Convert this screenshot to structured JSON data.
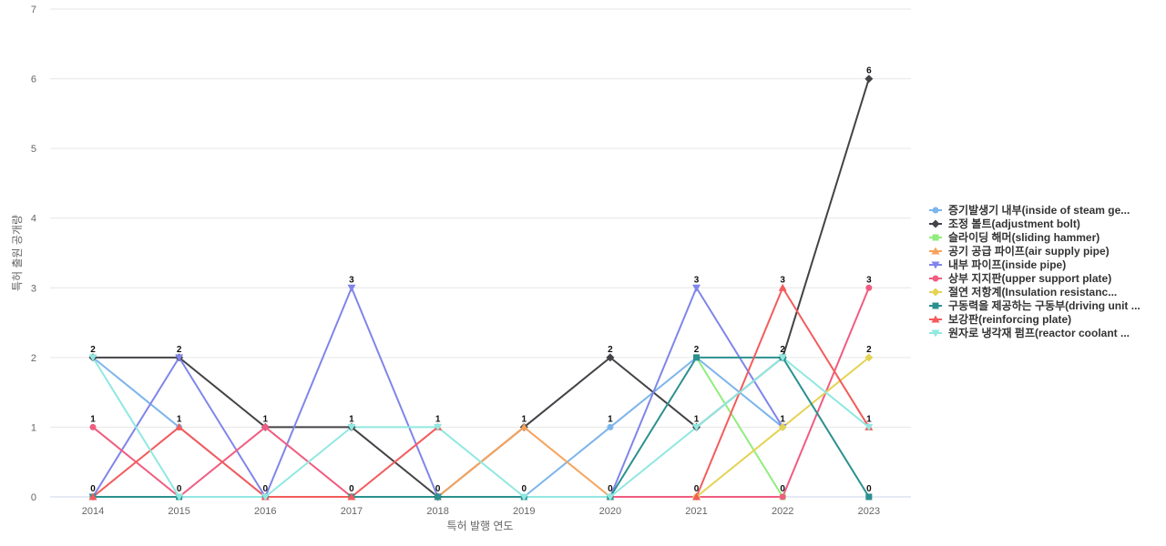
{
  "chart_data": {
    "type": "line",
    "title": "",
    "xlabel": "특허 발행 연도",
    "ylabel": "특허 출원 공개량",
    "x": [
      "2014",
      "2015",
      "2016",
      "2017",
      "2018",
      "2019",
      "2020",
      "2021",
      "2022",
      "2023"
    ],
    "ylim": [
      0,
      7
    ],
    "yticks": [
      "0",
      "1",
      "2",
      "3",
      "4",
      "5",
      "6",
      "7"
    ],
    "grid": true,
    "legend_position": "right",
    "series": [
      {
        "name": "증기발생기 내부(inside of steam ge...",
        "color": "#7cb5ec",
        "marker": "circle",
        "values": [
          2,
          1,
          0,
          0,
          0,
          0,
          1,
          2,
          1,
          null
        ]
      },
      {
        "name": "조정 볼트(adjustment bolt)",
        "color": "#434348",
        "marker": "diamond",
        "values": [
          2,
          2,
          1,
          1,
          0,
          1,
          2,
          1,
          2,
          6
        ]
      },
      {
        "name": "슬라이딩 해머(sliding hammer)",
        "color": "#90ed7d",
        "marker": "square",
        "values": [
          null,
          null,
          null,
          null,
          null,
          null,
          null,
          2,
          0,
          null
        ]
      },
      {
        "name": "공기 공급 파이프(air supply pipe)",
        "color": "#f7a35c",
        "marker": "triangle",
        "values": [
          null,
          null,
          null,
          null,
          0,
          1,
          0,
          null,
          null,
          null
        ]
      },
      {
        "name": "내부 파이프(inside pipe)",
        "color": "#8085e9",
        "marker": "triangle-down",
        "values": [
          0,
          2,
          0,
          3,
          0,
          null,
          0,
          3,
          1,
          null
        ]
      },
      {
        "name": "상부 지지판(upper support plate)",
        "color": "#f15c80",
        "marker": "circle",
        "values": [
          1,
          0,
          1,
          0,
          null,
          null,
          0,
          0,
          0,
          3
        ]
      },
      {
        "name": "절연 저항계(Insulation resistanc...",
        "color": "#e4d354",
        "marker": "diamond",
        "values": [
          null,
          null,
          null,
          null,
          null,
          null,
          null,
          0,
          1,
          2
        ]
      },
      {
        "name": "구동력을 제공하는 구동부(driving unit ...",
        "color": "#2b908f",
        "marker": "square",
        "values": [
          0,
          0,
          0,
          0,
          0,
          0,
          0,
          2,
          2,
          0
        ]
      },
      {
        "name": "보강판(reinforcing plate)",
        "color": "#f45b5b",
        "marker": "triangle",
        "values": [
          0,
          1,
          0,
          0,
          1,
          null,
          null,
          0,
          3,
          1
        ]
      },
      {
        "name": "원자로 냉각재 펌프(reactor coolant ...",
        "color": "#91e8e1",
        "marker": "triangle-down",
        "values": [
          2,
          0,
          0,
          1,
          1,
          0,
          0,
          1,
          2,
          1
        ]
      }
    ],
    "data_labels": [
      {
        "x": "2014",
        "text": "2",
        "value": 2
      },
      {
        "x": "2014",
        "text": "1",
        "value": 1
      },
      {
        "x": "2014",
        "text": "0",
        "value": 0
      },
      {
        "x": "2015",
        "text": "2",
        "value": 2
      },
      {
        "x": "2015",
        "text": "1",
        "value": 1
      },
      {
        "x": "2015",
        "text": "0",
        "value": 0
      },
      {
        "x": "2016",
        "text": "1",
        "value": 1
      },
      {
        "x": "2016",
        "text": "0",
        "value": 0
      },
      {
        "x": "2017",
        "text": "3",
        "value": 3
      },
      {
        "x": "2017",
        "text": "1",
        "value": 1
      },
      {
        "x": "2017",
        "text": "0",
        "value": 0
      },
      {
        "x": "2018",
        "text": "1",
        "value": 1
      },
      {
        "x": "2018",
        "text": "0",
        "value": 0
      },
      {
        "x": "2019",
        "text": "1",
        "value": 1
      },
      {
        "x": "2019",
        "text": "0",
        "value": 0
      },
      {
        "x": "2020",
        "text": "2",
        "value": 2
      },
      {
        "x": "2020",
        "text": "1",
        "value": 1
      },
      {
        "x": "2020",
        "text": "0",
        "value": 0
      },
      {
        "x": "2021",
        "text": "3",
        "value": 3
      },
      {
        "x": "2021",
        "text": "2",
        "value": 2
      },
      {
        "x": "2021",
        "text": "1",
        "value": 1
      },
      {
        "x": "2021",
        "text": "0",
        "value": 0
      },
      {
        "x": "2022",
        "text": "3",
        "value": 3
      },
      {
        "x": "2022",
        "text": "2",
        "value": 2
      },
      {
        "x": "2022",
        "text": "1",
        "value": 1
      },
      {
        "x": "2022",
        "text": "0",
        "value": 0
      },
      {
        "x": "2023",
        "text": "6",
        "value": 6
      },
      {
        "x": "2023",
        "text": "3",
        "value": 3
      },
      {
        "x": "2023",
        "text": "2",
        "value": 2
      },
      {
        "x": "2023",
        "text": "1",
        "value": 1
      },
      {
        "x": "2023",
        "text": "0",
        "value": 0
      }
    ]
  }
}
